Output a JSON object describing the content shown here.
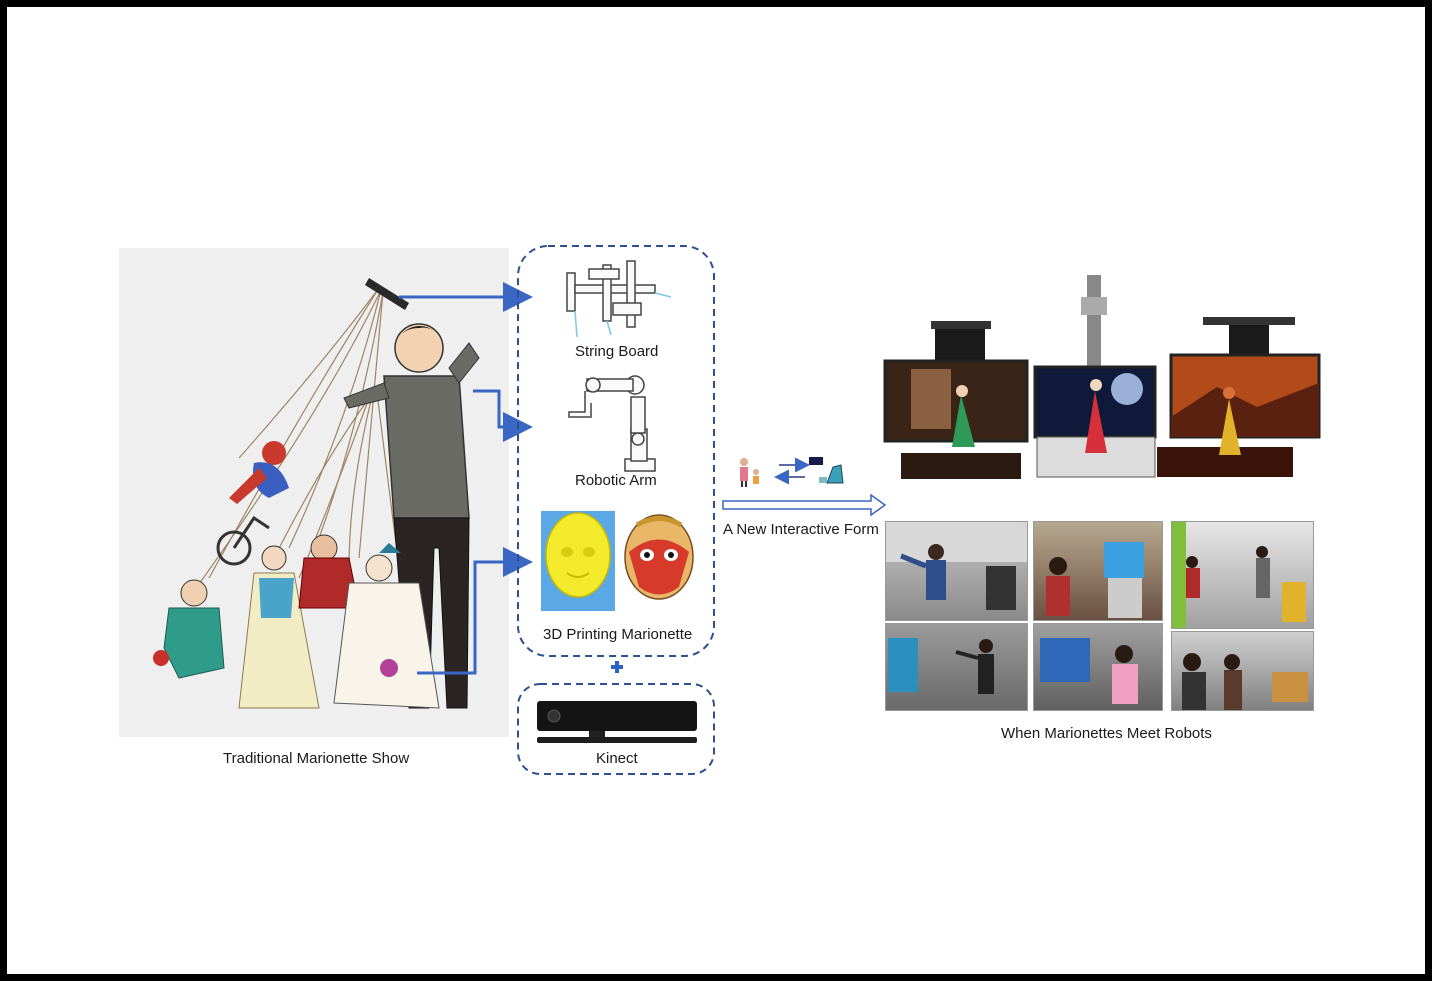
{
  "labels": {
    "traditional": "Traditional Marionette Show",
    "string_board": "String Board",
    "robotic_arm": "Robotic Arm",
    "printing": "3D Printing Marionette",
    "kinect": "Kinect",
    "new_form": "A New Interactive  Form",
    "meet": "When Marionettes Meet Robots"
  },
  "colors": {
    "arrow_blue": "#3a66c4",
    "dashed_border": "#2f4f8f",
    "plus_blue": "#2a62c8",
    "print_yellow": "#f2ea2a",
    "print_base": "#5aa9e6",
    "mask_red": "#d63a2b"
  }
}
